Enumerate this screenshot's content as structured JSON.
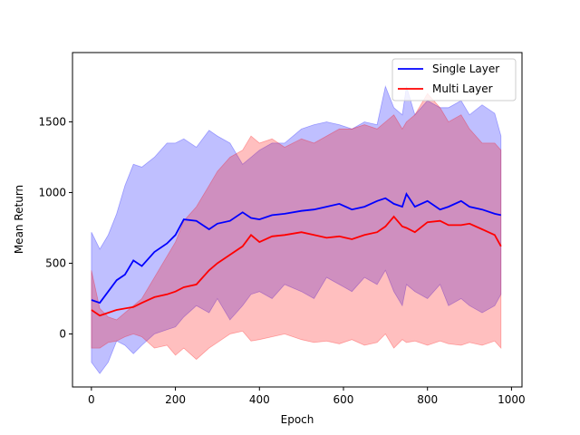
{
  "chart_data": {
    "type": "line",
    "title": "",
    "xlabel": "Epoch",
    "ylabel": "Mean Return",
    "xlim": [
      -45,
      1025
    ],
    "ylim": [
      -375,
      1990
    ],
    "xticks": [
      0,
      200,
      400,
      600,
      800,
      1000
    ],
    "yticks": [
      0,
      500,
      1000,
      1500
    ],
    "grid": false,
    "legend_position": "top-right",
    "series": [
      {
        "name": "Single Layer",
        "color": "#0000ff",
        "band_color": "#0000ff",
        "x": [
          0,
          20,
          40,
          60,
          80,
          100,
          120,
          150,
          180,
          200,
          220,
          250,
          280,
          300,
          330,
          360,
          380,
          400,
          430,
          460,
          500,
          530,
          560,
          590,
          620,
          650,
          680,
          700,
          720,
          740,
          750,
          770,
          800,
          830,
          850,
          880,
          900,
          930,
          960,
          975
        ],
        "y": [
          240,
          220,
          300,
          380,
          420,
          520,
          480,
          580,
          640,
          700,
          810,
          800,
          740,
          780,
          800,
          860,
          820,
          810,
          840,
          850,
          870,
          880,
          900,
          920,
          880,
          900,
          940,
          960,
          920,
          900,
          990,
          900,
          940,
          880,
          900,
          940,
          900,
          880,
          850,
          840
        ],
        "upper": [
          720,
          600,
          700,
          850,
          1050,
          1200,
          1180,
          1250,
          1350,
          1350,
          1380,
          1320,
          1440,
          1400,
          1350,
          1200,
          1250,
          1300,
          1350,
          1350,
          1450,
          1480,
          1500,
          1480,
          1450,
          1500,
          1480,
          1750,
          1600,
          1550,
          1750,
          1550,
          1650,
          1600,
          1600,
          1650,
          1550,
          1620,
          1560,
          1400
        ],
        "lower": [
          -200,
          -280,
          -200,
          -50,
          -80,
          -140,
          -80,
          0,
          30,
          50,
          120,
          200,
          150,
          250,
          100,
          200,
          280,
          300,
          250,
          350,
          300,
          250,
          400,
          350,
          300,
          400,
          350,
          450,
          300,
          200,
          350,
          300,
          250,
          350,
          200,
          250,
          200,
          150,
          200,
          280
        ]
      },
      {
        "name": "Multi Layer",
        "color": "#ff0000",
        "band_color": "#ff0000",
        "x": [
          0,
          20,
          40,
          60,
          80,
          100,
          120,
          150,
          180,
          200,
          220,
          250,
          280,
          300,
          330,
          360,
          380,
          400,
          430,
          460,
          500,
          530,
          560,
          590,
          620,
          650,
          680,
          700,
          720,
          740,
          750,
          770,
          800,
          830,
          850,
          880,
          900,
          930,
          960,
          975
        ],
        "y": [
          170,
          130,
          150,
          170,
          180,
          190,
          220,
          260,
          280,
          300,
          330,
          350,
          450,
          500,
          560,
          620,
          700,
          650,
          690,
          700,
          720,
          700,
          680,
          690,
          670,
          700,
          720,
          760,
          830,
          760,
          750,
          720,
          790,
          800,
          770,
          770,
          780,
          740,
          700,
          620
        ],
        "upper": [
          450,
          180,
          120,
          100,
          150,
          200,
          250,
          400,
          550,
          650,
          800,
          900,
          1050,
          1150,
          1250,
          1300,
          1400,
          1350,
          1380,
          1320,
          1380,
          1350,
          1400,
          1450,
          1450,
          1480,
          1450,
          1500,
          1550,
          1450,
          1500,
          1550,
          1700,
          1600,
          1500,
          1550,
          1450,
          1350,
          1350,
          1300
        ],
        "lower": [
          -100,
          -100,
          -60,
          -50,
          -20,
          0,
          -20,
          -100,
          -80,
          -150,
          -100,
          -180,
          -100,
          -60,
          0,
          20,
          -50,
          -40,
          -20,
          0,
          -40,
          -60,
          -50,
          -70,
          -40,
          -80,
          -60,
          0,
          -100,
          -40,
          -60,
          -50,
          -80,
          -50,
          -70,
          -80,
          -60,
          -80,
          -50,
          -100
        ]
      }
    ]
  }
}
